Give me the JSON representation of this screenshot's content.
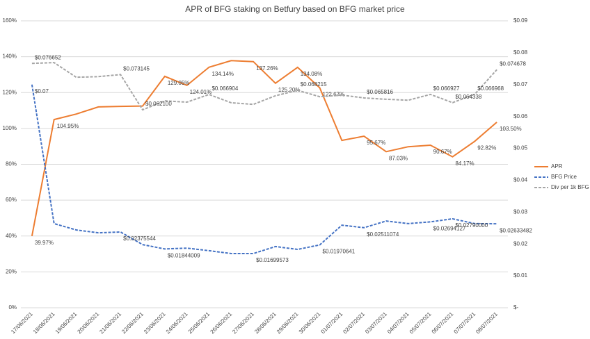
{
  "chart_data": {
    "type": "line",
    "title": "APR of BFG staking on Betfury based on BFG market price",
    "categories": [
      "17/06/2021",
      "18/06/2021",
      "19/06/2021",
      "20/06/2021",
      "21/06/2021",
      "22/06/2021",
      "23/06/2021",
      "24/06/2021",
      "25/06/2021",
      "26/06/2021",
      "27/06/2021",
      "28/06/2021",
      "29/06/2021",
      "30/06/2021",
      "01/07/2021",
      "02/07/2021",
      "03/07/2021",
      "04/07/2021",
      "05/07/2021",
      "06/07/2021",
      "07/07/2021",
      "08/07/2021"
    ],
    "ylim": [
      0,
      160
    ],
    "yticks": [
      {
        "value": 0,
        "label": "0%"
      },
      {
        "value": 20,
        "label": "20%"
      },
      {
        "value": 40,
        "label": "40%"
      },
      {
        "value": 60,
        "label": "60%"
      },
      {
        "value": 80,
        "label": "80%"
      },
      {
        "value": 100,
        "label": "100%"
      },
      {
        "value": 120,
        "label": "120%"
      },
      {
        "value": 140,
        "label": "140%"
      },
      {
        "value": 160,
        "label": "160%"
      }
    ],
    "y2lim": [
      0,
      0.09
    ],
    "y2ticks": [
      {
        "value": 0,
        "label": "$-"
      },
      {
        "value": 0.01,
        "label": "$0.01"
      },
      {
        "value": 0.02,
        "label": "$0.02"
      },
      {
        "value": 0.03,
        "label": "$0.03"
      },
      {
        "value": 0.04,
        "label": "$0.04"
      },
      {
        "value": 0.05,
        "label": "$0.05"
      },
      {
        "value": 0.06,
        "label": "$0.06"
      },
      {
        "value": 0.07,
        "label": "$0.07"
      },
      {
        "value": 0.08,
        "label": "$0.08"
      },
      {
        "value": 0.09,
        "label": "$0.09"
      }
    ],
    "grid": true,
    "legend": "right",
    "series": [
      {
        "name": "APR",
        "color": "#ed7d31",
        "line_style": "solid",
        "values": [
          39.97,
          104.95,
          108,
          112,
          112.3,
          112.5,
          129.05,
          124.01,
          134.14,
          137.8,
          137.26,
          125.2,
          134.08,
          122.67,
          93.3,
          95.67,
          87.03,
          89.8,
          90.67,
          84.17,
          92.82,
          103.5
        ],
        "value_labels": [
          "39.97%",
          "104.95%",
          null,
          null,
          null,
          null,
          "129.05%",
          "124.01%",
          "134.14%",
          null,
          "137.26%",
          "125.20%",
          "134.08%",
          "122.67%",
          null,
          "95.67%",
          "87.03%",
          null,
          "90.67%",
          "84.17%",
          "92.82%",
          "103.50%"
        ]
      },
      {
        "name": "BFG Price",
        "color": "#4472c4",
        "line_style": "dashed",
        "axis": "y2",
        "values": [
          0.07,
          0.0264,
          0.0244,
          0.0235,
          0.02375544,
          0.0198,
          0.01844009,
          0.0187,
          0.0179,
          0.017,
          0.01699573,
          0.0192,
          0.0183,
          0.01970641,
          0.0259,
          0.02511074,
          0.0272,
          0.0264,
          0.02694127,
          0.0279,
          0.0264,
          0.02633482
        ],
        "value_labels": [
          "$0.07",
          null,
          null,
          null,
          "$0.02375544",
          null,
          "$0.01844009",
          null,
          null,
          null,
          "$0.01699573",
          null,
          null,
          "$0.01970641",
          null,
          "$0.02511074",
          null,
          null,
          "$0.02694127",
          "$0.02790000",
          null,
          "$0.02633482"
        ]
      },
      {
        "name": "Div per 1k BFG",
        "color": "#a5a5a5",
        "line_style": "dashed",
        "axis": "y2",
        "values": [
          0.076652,
          0.0769,
          0.0723,
          0.0725,
          0.073145,
          0.0621,
          0.0649,
          0.0645,
          0.066904,
          0.0643,
          0.0638,
          0.0665,
          0.068215,
          0.0662,
          0.0667,
          0.065816,
          0.0654,
          0.0651,
          0.066927,
          0.064338,
          0.066968,
          0.074678
        ],
        "value_labels": [
          "$0.076652",
          null,
          null,
          null,
          "$0.073145",
          "$0.062100",
          null,
          null,
          "$0.066904",
          null,
          null,
          null,
          "$0.068215",
          null,
          null,
          "$0.065816",
          null,
          null,
          "$0.066927",
          "$0.064338",
          "$0.066968",
          "$0.074678"
        ]
      }
    ]
  }
}
